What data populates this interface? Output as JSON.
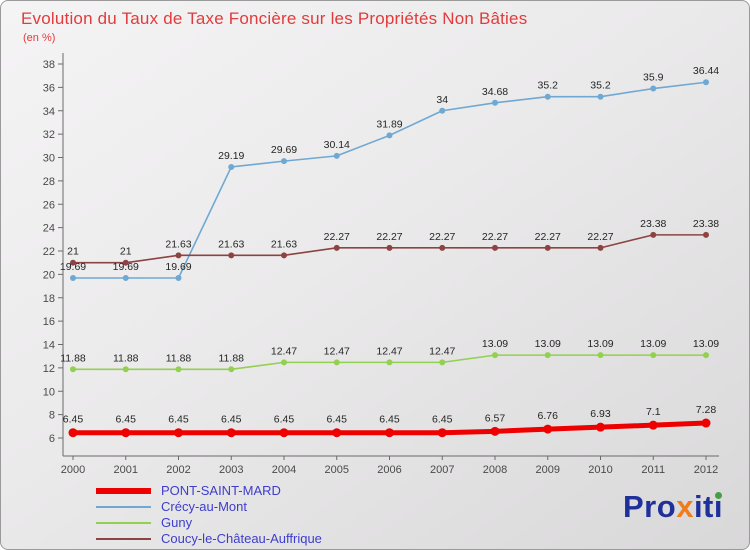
{
  "title": "Evolution du Taux de Taxe Foncière sur les Propriétés Non Bâties",
  "subtitle": "(en %)",
  "colors": {
    "title_text": "#e23b3b",
    "legend_text": "#3d3dcc",
    "axis_text": "#4a4a4a",
    "label_text": "#252525",
    "axis_line": "#6a6a6a"
  },
  "chart_data": {
    "type": "line",
    "title": "Evolution du Taux de Taxe Foncière sur les Propriétés Non Bâties",
    "subtitle": "(en %)",
    "xlabel": "",
    "ylabel": "",
    "grid": false,
    "legend_position": "bottom-left",
    "x": [
      2000,
      2001,
      2002,
      2003,
      2004,
      2005,
      2006,
      2007,
      2008,
      2009,
      2010,
      2011,
      2012
    ],
    "ylim": [
      6,
      38
    ],
    "yticks": [
      6,
      8,
      10,
      12,
      14,
      16,
      18,
      20,
      22,
      24,
      26,
      28,
      30,
      32,
      34,
      36,
      38
    ],
    "series": [
      {
        "name": "PONT-SAINT-MARD",
        "color": "#ee0000",
        "thick": true,
        "values": [
          6.45,
          6.45,
          6.45,
          6.45,
          6.45,
          6.45,
          6.45,
          6.45,
          6.57,
          6.76,
          6.93,
          7.1,
          7.28
        ],
        "labels": [
          "6.45",
          "6.45",
          "6.45",
          "6.45",
          "6.45",
          "6.45",
          "6.45",
          "6.45",
          "6.57",
          "6.76",
          "6.93",
          "7.1",
          "7.28"
        ]
      },
      {
        "name": "Crécy-au-Mont",
        "color": "#6fa8d2",
        "thick": false,
        "values": [
          19.69,
          19.69,
          19.69,
          29.19,
          29.69,
          30.14,
          31.89,
          34,
          34.68,
          35.2,
          35.2,
          35.9,
          36.44
        ],
        "labels": [
          "19.69",
          "19.69",
          "19.69",
          "29.19",
          "29.69",
          "30.14",
          "31.89",
          "34",
          "34.68",
          "35.2",
          "35.2",
          "35.9",
          "36.44"
        ]
      },
      {
        "name": "Guny",
        "color": "#92d050",
        "thick": false,
        "values": [
          11.88,
          11.88,
          11.88,
          11.88,
          12.47,
          12.47,
          12.47,
          12.47,
          13.09,
          13.09,
          13.09,
          13.09,
          13.09
        ],
        "labels": [
          "11.88",
          "11.88",
          "11.88",
          "11.88",
          "12.47",
          "12.47",
          "12.47",
          "12.47",
          "13.09",
          "13.09",
          "13.09",
          "13.09",
          "13.09"
        ]
      },
      {
        "name": "Coucy-le-Château-Auffrique",
        "color": "#8d4343",
        "thick": false,
        "values": [
          21,
          21,
          21.63,
          21.63,
          21.63,
          22.27,
          22.27,
          22.27,
          22.27,
          22.27,
          22.27,
          23.38,
          23.38
        ],
        "labels": [
          "21",
          "21",
          "21.63",
          "21.63",
          "21.63",
          "22.27",
          "22.27",
          "22.27",
          "22.27",
          "22.27",
          "22.27",
          "23.38",
          "23.38"
        ]
      }
    ]
  },
  "legend": {
    "items": [
      {
        "label": "PONT-SAINT-MARD"
      },
      {
        "label": "Crécy-au-Mont"
      },
      {
        "label": "Guny"
      },
      {
        "label": "Coucy-le-Château-Auffrique"
      }
    ]
  },
  "logo": {
    "part_pro": "Pro",
    "part_x": "x",
    "part_it": "it",
    "part_i": "ı",
    "color_blue": "#20309a",
    "color_orange": "#f07d1a",
    "color_green": "#43a047"
  }
}
